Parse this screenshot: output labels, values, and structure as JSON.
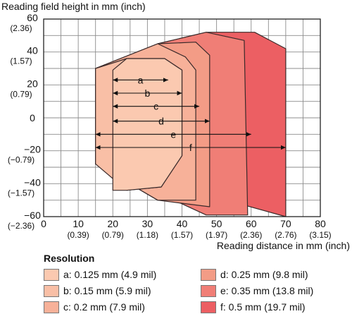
{
  "chart_data": {
    "type": "area",
    "xlabel": "Reading distance in mm (inch)",
    "ylabel": "Reading field height in mm (inch)",
    "xlim": [
      0,
      80
    ],
    "ylim": [
      -60,
      60
    ],
    "grid": true,
    "x_ticks": [
      {
        "value": 0,
        "label": "0",
        "sub": ""
      },
      {
        "value": 10,
        "label": "10",
        "sub": "(0.39)"
      },
      {
        "value": 20,
        "label": "20",
        "sub": "(0.79)"
      },
      {
        "value": 30,
        "label": "30",
        "sub": "(1.18)"
      },
      {
        "value": 40,
        "label": "40",
        "sub": "(1.57)"
      },
      {
        "value": 50,
        "label": "50",
        "sub": "(1.97)"
      },
      {
        "value": 60,
        "label": "60",
        "sub": "(2.36)"
      },
      {
        "value": 70,
        "label": "70",
        "sub": "(2.76)"
      },
      {
        "value": 80,
        "label": "80",
        "sub": "(3.15)"
      }
    ],
    "y_ticks": [
      {
        "value": 60,
        "label": "60",
        "sub": "(2.36)"
      },
      {
        "value": 40,
        "label": "40",
        "sub": "(1.57)"
      },
      {
        "value": 20,
        "label": "20",
        "sub": "(0.79)"
      },
      {
        "value": 0,
        "label": "0",
        "sub": ""
      },
      {
        "value": -20,
        "label": "−20",
        "sub": "(−0.79)"
      },
      {
        "value": -40,
        "label": "−40",
        "sub": "(−1.57)"
      },
      {
        "value": -60,
        "label": "−60",
        "sub": "(−2.36)"
      }
    ],
    "series": [
      {
        "name": "f: 0.5 mm (19.7 mil)",
        "key": "f",
        "color": "#EC5F63",
        "polygon": [
          [
            15,
            30
          ],
          [
            33,
            45
          ],
          [
            47,
            52
          ],
          [
            61,
            52
          ],
          [
            70,
            42
          ],
          [
            70,
            -60
          ],
          [
            15,
            -28
          ]
        ]
      },
      {
        "name": "e: 0.35 mm (13.8 mil)",
        "key": "e",
        "color": "#F07E76",
        "polygon": [
          [
            15,
            30
          ],
          [
            33,
            45
          ],
          [
            47,
            52
          ],
          [
            58,
            47
          ],
          [
            59,
            -59
          ],
          [
            47,
            -59
          ],
          [
            15,
            -28
          ]
        ]
      },
      {
        "name": "d: 0.25 mm (9.8 mil)",
        "key": "d",
        "color": "#F39C86",
        "polygon": [
          [
            15,
            30
          ],
          [
            33,
            45
          ],
          [
            44,
            46
          ],
          [
            48,
            38
          ],
          [
            48,
            -54
          ],
          [
            33,
            -50
          ],
          [
            15,
            -28
          ]
        ]
      },
      {
        "name": "c: 0.2 mm (7.9 mil)",
        "key": "c",
        "color": "#F7B199",
        "polygon": [
          [
            15,
            30
          ],
          [
            33,
            45
          ],
          [
            41,
            37
          ],
          [
            44,
            29
          ],
          [
            44,
            -50
          ],
          [
            33,
            -50
          ],
          [
            15,
            -28
          ]
        ]
      },
      {
        "name": "b: 0.15 mm (5.9 mil)",
        "key": "b",
        "color": "#F9BFA6",
        "polygon": [
          [
            15,
            30
          ],
          [
            24,
            36
          ],
          [
            35,
            36
          ],
          [
            40,
            29
          ],
          [
            40,
            -23
          ],
          [
            34,
            -42
          ],
          [
            24,
            -44
          ],
          [
            15,
            -28
          ]
        ]
      },
      {
        "name": "a: 0.125 mm (4.9 mil)",
        "key": "a",
        "color": "#FBC9B0",
        "polygon": [
          [
            20,
            29
          ],
          [
            24,
            36
          ],
          [
            35,
            36
          ],
          [
            40,
            29
          ],
          [
            40,
            -23
          ],
          [
            34,
            -42
          ],
          [
            24,
            -44
          ],
          [
            20,
            -44
          ]
        ]
      }
    ],
    "dimension_lines": [
      {
        "label": "a",
        "x0": 20,
        "x1": 36,
        "y": 23
      },
      {
        "label": "b",
        "x0": 20,
        "x1": 40,
        "y": 15
      },
      {
        "label": "c",
        "x0": 20,
        "x1": 45,
        "y": 7
      },
      {
        "label": "d",
        "x0": 20,
        "x1": 48,
        "y": -2
      },
      {
        "label": "e",
        "x0": 15,
        "x1": 60,
        "y": -10
      },
      {
        "label": "f",
        "x0": 15,
        "x1": 70,
        "y": -18
      }
    ]
  },
  "legend": {
    "title": "Resolution",
    "items": [
      {
        "label": "a: 0.125 mm (4.9 mil)",
        "color": "#FBC9B0"
      },
      {
        "label": "b: 0.15 mm (5.9 mil)",
        "color": "#F9BFA6"
      },
      {
        "label": "c: 0.2 mm (7.9 mil)",
        "color": "#F7B199"
      },
      {
        "label": "d: 0.25 mm (9.8 mil)",
        "color": "#F39C86"
      },
      {
        "label": "e: 0.35 mm (13.8 mil)",
        "color": "#F07E76"
      },
      {
        "label": "f: 0.5 mm (19.7 mil)",
        "color": "#EC5F63"
      }
    ]
  }
}
